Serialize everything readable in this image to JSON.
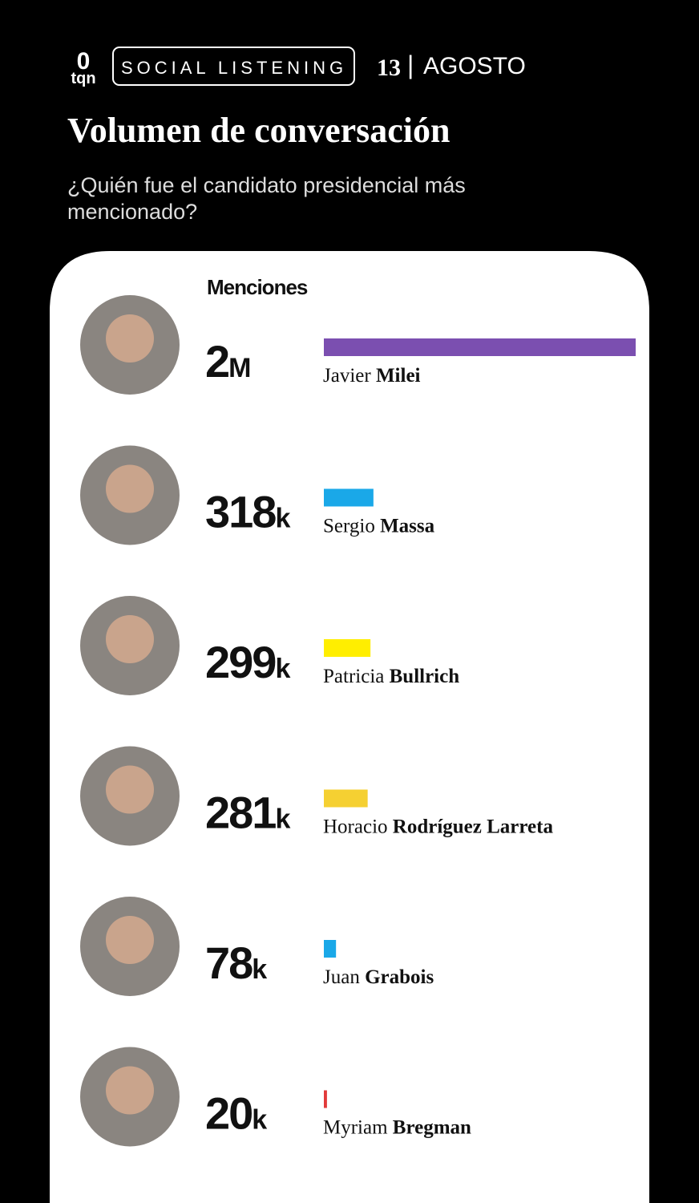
{
  "header": {
    "logo_top": "0",
    "logo_bottom": "tqn",
    "badge": "SOCIAL LISTENING",
    "day": "13",
    "separator": "|",
    "month": "AGOSTO"
  },
  "chart_data": {
    "type": "bar",
    "title": "Volumen de conversación",
    "subtitle_lines": [
      "¿Quién fue el candidato presidencial más",
      "mencionado?"
    ],
    "value_header": "Menciones",
    "categories": [
      "Javier Milei",
      "Sergio Massa",
      "Patricia Bullrich",
      "Horacio Rodríguez Larreta",
      "Juan Grabois",
      "Myriam Bregman"
    ],
    "values": [
      2000000,
      318000,
      299000,
      281000,
      78000,
      20000
    ],
    "value_labels": [
      "2M",
      "318k",
      "299k",
      "281k",
      "78k",
      "20k"
    ],
    "colors": [
      "#7b4fb0",
      "#1aa8e8",
      "#ffee00",
      "#f5d032",
      "#1aa8e8",
      "#e23a3a"
    ],
    "xlim": [
      0,
      2000000
    ]
  }
}
